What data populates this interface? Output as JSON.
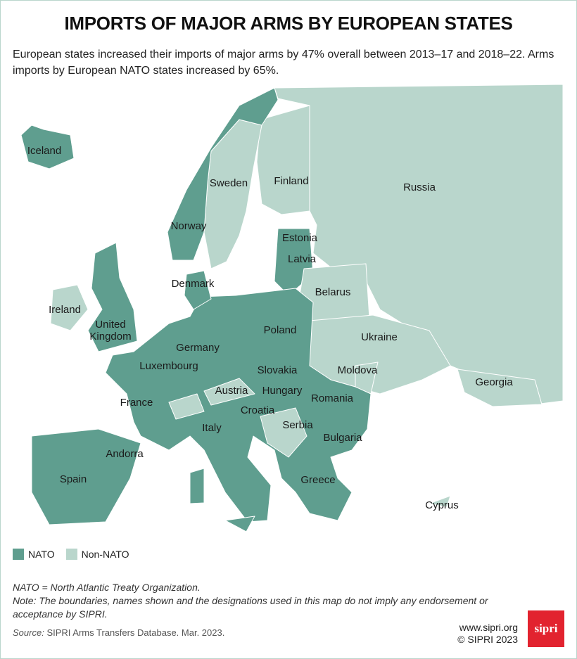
{
  "header": {
    "title": "IMPORTS OF MAJOR ARMS BY EUROPEAN STATES",
    "subtitle": "European states increased their imports of major arms by 47% overall between 2013–17 and 2018–22. Arms imports by European NATO states increased by 65%."
  },
  "map": {
    "countries": [
      {
        "name": "Iceland"
      },
      {
        "name": "Sweden"
      },
      {
        "name": "Finland"
      },
      {
        "name": "Russia"
      },
      {
        "name": "Norway"
      },
      {
        "name": "Estonia"
      },
      {
        "name": "Latvia"
      },
      {
        "name": "Denmark"
      },
      {
        "name": "Belarus"
      },
      {
        "name": "Ireland"
      },
      {
        "name": "United Kingdom"
      },
      {
        "name": "Poland"
      },
      {
        "name": "Ukraine"
      },
      {
        "name": "Germany"
      },
      {
        "name": "Luxembourg"
      },
      {
        "name": "Slovakia"
      },
      {
        "name": "Moldova"
      },
      {
        "name": "Austria"
      },
      {
        "name": "Hungary"
      },
      {
        "name": "Georgia"
      },
      {
        "name": "France"
      },
      {
        "name": "Romania"
      },
      {
        "name": "Croatia"
      },
      {
        "name": "Serbia"
      },
      {
        "name": "Italy"
      },
      {
        "name": "Bulgaria"
      },
      {
        "name": "Andorra"
      },
      {
        "name": "Spain"
      },
      {
        "name": "Greece"
      },
      {
        "name": "Cyprus"
      }
    ]
  },
  "legend": [
    {
      "label": "NATO",
      "color": "#5f9e8f"
    },
    {
      "label": "Non-NATO",
      "color": "#b9d6cc"
    }
  ],
  "notes": [
    "NATO = North Atlantic Treaty Organization.",
    "Note: The boundaries, names shown and the designations used in this map do not imply any endorsement or acceptance by SIPRI."
  ],
  "source": {
    "prefix": "Source:",
    "text": "SIPRI Arms Transfers Database. Mar. 2023."
  },
  "footer": {
    "url": "www.sipri.org",
    "copyright": "© SIPRI 2023",
    "logo": "sipri"
  }
}
